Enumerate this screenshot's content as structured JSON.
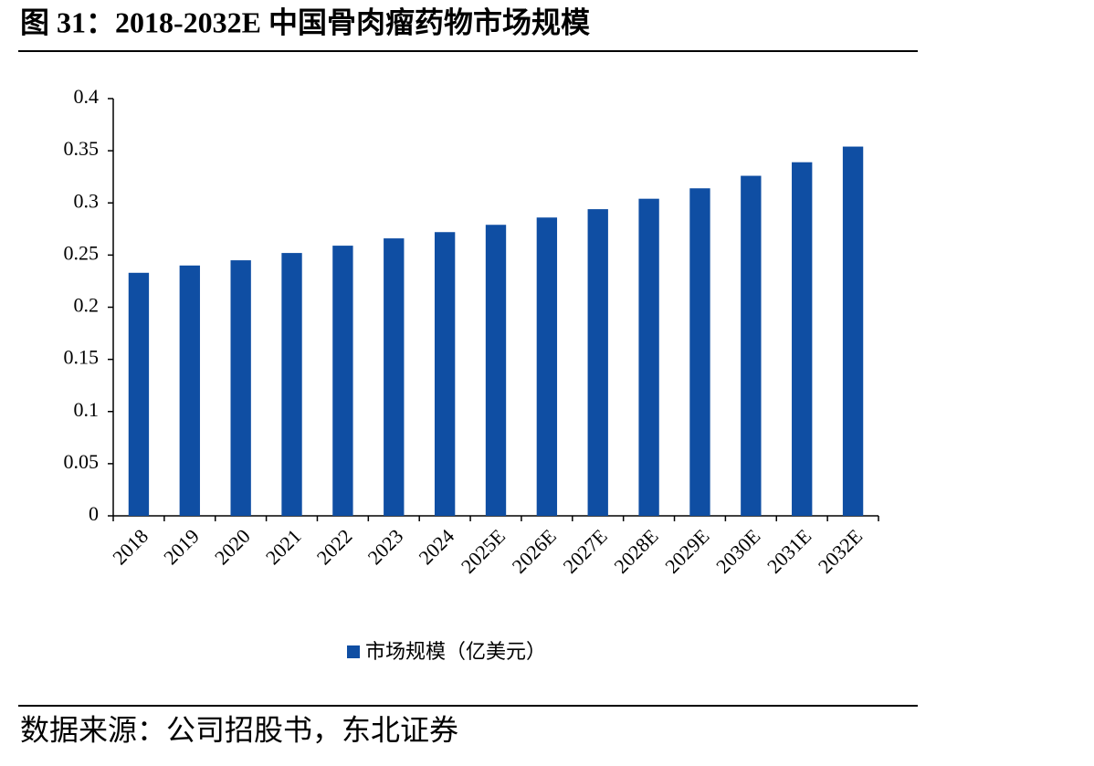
{
  "chart_data": {
    "type": "bar",
    "title": "图 31：2018-2032E 中国骨肉瘤药物市场规模",
    "source": "数据来源：公司招股书，东北证券",
    "categories": [
      "2018",
      "2019",
      "2020",
      "2021",
      "2022",
      "2023",
      "2024",
      "2025E",
      "2026E",
      "2027E",
      "2028E",
      "2029E",
      "2030E",
      "2031E",
      "2032E"
    ],
    "series": [
      {
        "name": "市场规模（亿美元）",
        "color": "#0f4ea3",
        "values": [
          0.233,
          0.24,
          0.245,
          0.252,
          0.259,
          0.266,
          0.272,
          0.279,
          0.286,
          0.294,
          0.304,
          0.314,
          0.326,
          0.339,
          0.354
        ]
      }
    ],
    "ylim": [
      0,
      0.4
    ],
    "yticks": [
      0,
      0.05,
      0.1,
      0.15,
      0.2,
      0.25,
      0.3,
      0.35,
      0.4
    ],
    "grid": false,
    "legend": "bottom"
  }
}
